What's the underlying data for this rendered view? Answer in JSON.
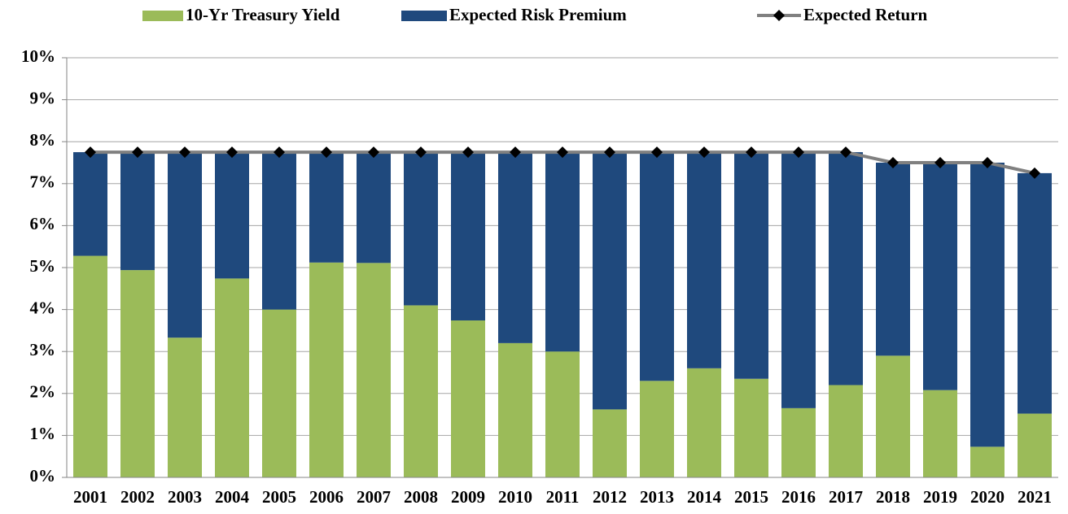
{
  "chart_data": {
    "type": "stacked_bar_line",
    "categories": [
      "2001",
      "2002",
      "2003",
      "2004",
      "2005",
      "2006",
      "2007",
      "2008",
      "2009",
      "2010",
      "2011",
      "2012",
      "2013",
      "2014",
      "2015",
      "2016",
      "2017",
      "2018",
      "2019",
      "2020",
      "2021"
    ],
    "series": [
      {
        "name": "10-Yr Treasury Yield",
        "color": "#9bbb59",
        "kind": "bar",
        "values": [
          5.28,
          4.94,
          3.33,
          4.74,
          4.0,
          5.12,
          5.11,
          4.1,
          3.74,
          3.2,
          3.0,
          1.62,
          2.3,
          2.6,
          2.35,
          1.65,
          2.2,
          2.9,
          2.08,
          0.73,
          1.52
        ]
      },
      {
        "name": "Expected Risk Premium",
        "color": "#1f497d",
        "kind": "bar",
        "values": [
          2.47,
          2.81,
          4.42,
          3.01,
          3.75,
          2.63,
          2.64,
          3.65,
          4.01,
          4.55,
          4.75,
          6.13,
          5.45,
          5.15,
          5.4,
          6.1,
          5.55,
          4.6,
          5.42,
          6.77,
          5.73
        ]
      },
      {
        "name": "Expected Return",
        "color": "#808080",
        "kind": "line",
        "values": [
          7.75,
          7.75,
          7.75,
          7.75,
          7.75,
          7.75,
          7.75,
          7.75,
          7.75,
          7.75,
          7.75,
          7.75,
          7.75,
          7.75,
          7.75,
          7.75,
          7.75,
          7.5,
          7.5,
          7.5,
          7.25
        ]
      }
    ],
    "ylim": [
      0,
      10
    ],
    "yticks": [
      {
        "value": 0,
        "label": "0%"
      },
      {
        "value": 1,
        "label": "1%"
      },
      {
        "value": 2,
        "label": "2%"
      },
      {
        "value": 3,
        "label": "3%"
      },
      {
        "value": 4,
        "label": "4%"
      },
      {
        "value": 5,
        "label": "5%"
      },
      {
        "value": 6,
        "label": "6%"
      },
      {
        "value": 7,
        "label": "7%"
      },
      {
        "value": 8,
        "label": "8%"
      },
      {
        "value": 9,
        "label": "9%"
      },
      {
        "value": 10,
        "label": "10%"
      }
    ],
    "grid": true,
    "legend": "top"
  }
}
